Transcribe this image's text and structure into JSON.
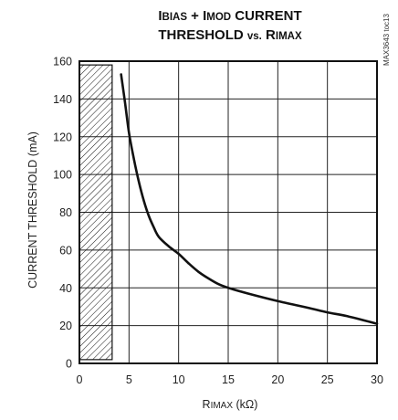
{
  "chart_data": {
    "type": "line",
    "title": {
      "line1": [
        {
          "text": "I",
          "small": false
        },
        {
          "text": "BIAS",
          "small": true
        },
        {
          "text": " + I",
          "small": false
        },
        {
          "text": "MOD",
          "small": true
        },
        {
          "text": " CURRENT",
          "small": false
        }
      ],
      "line2": [
        {
          "text": "THRESHOLD ",
          "small": false
        },
        {
          "text": "vs.",
          "small": true
        },
        {
          "text": " R",
          "small": false
        },
        {
          "text": "IMAX",
          "small": true
        }
      ]
    },
    "xlabel": [
      {
        "text": "R",
        "small": false
      },
      {
        "text": "IMAX",
        "small": true
      },
      {
        "text": " (kΩ)",
        "small": false
      }
    ],
    "ylabel": "CURRENT THRESHOLD (mA)",
    "xlim": [
      0,
      30
    ],
    "ylim": [
      0,
      160
    ],
    "xticks": [
      "0",
      "5",
      "10",
      "15",
      "20",
      "25",
      "30"
    ],
    "yticks": [
      "0",
      "20",
      "40",
      "60",
      "80",
      "100",
      "120",
      "140",
      "160"
    ],
    "grid": true,
    "hatched_region": {
      "x": [
        0,
        3.3
      ],
      "y": [
        2,
        158
      ]
    },
    "series": [
      {
        "x": [
          4.2,
          4.6,
          5,
          5.5,
          6,
          6.5,
          7,
          7.5,
          8,
          9,
          10,
          11,
          12,
          13,
          14,
          15,
          17,
          20,
          23,
          25,
          27,
          30
        ],
        "values": [
          153,
          138,
          122,
          108,
          96,
          86,
          78,
          72,
          67,
          62,
          58,
          53,
          48.5,
          45,
          42,
          40,
          37,
          33,
          29.5,
          27,
          25,
          21
        ],
        "color": "#111111"
      }
    ],
    "note": "MAX3643 toc13"
  }
}
